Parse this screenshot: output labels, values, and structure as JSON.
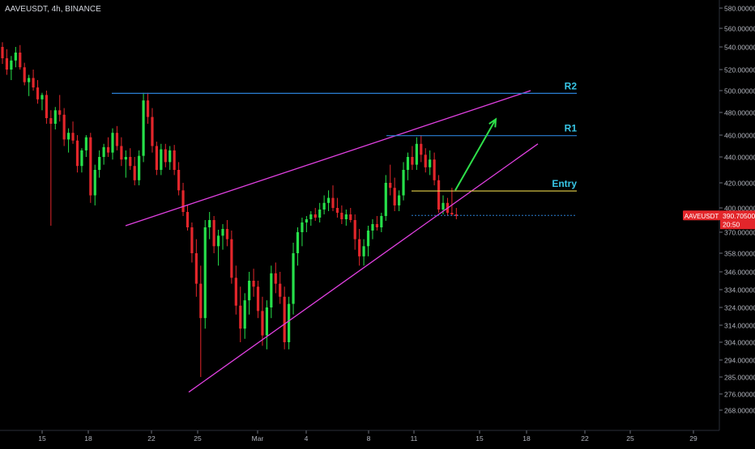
{
  "header": {
    "symbol_line": "AAVEUSDT, 4h, BINANCE"
  },
  "colors": {
    "background": "#000000",
    "up": "#26e04a",
    "down": "#e3262b",
    "wedge": "#e040e0",
    "resistance": "#2a7fd4",
    "entry": "#e8d44a",
    "arrow": "#2ee04a",
    "label_text": "#38c6e6",
    "price_tag": "#e3262b",
    "axis_text": "#b2b5be"
  },
  "chart_data": {
    "type": "candlestick",
    "symbol": "AAVEUSDT",
    "interval": "4h",
    "exchange": "BINANCE",
    "x_ticks": [
      "15",
      "18",
      "22",
      "25",
      "Mar",
      "4",
      "8",
      "11",
      "15",
      "18",
      "22",
      "25",
      "29"
    ],
    "y_ticks": [
      "580.00000",
      "560.00000",
      "540.00000",
      "520.00000",
      "500.00000",
      "480.00000",
      "460.00000",
      "440.00000",
      "420.00000",
      "400.00000",
      "370.00000",
      "358.00000",
      "346.00000",
      "334.00000",
      "324.00000",
      "314.00000",
      "304.00000",
      "294.00000",
      "285.00000",
      "276.00000",
      "268.00000"
    ],
    "y_range": [
      268,
      580
    ],
    "last_price": "390.70500",
    "countdown": "20:50",
    "price_label": "AAVEUSDT",
    "trend_levels": [
      {
        "label": "R2",
        "price": 497.5
      },
      {
        "label": "R1",
        "price": 459.5
      },
      {
        "label": "Entry",
        "price": 413.5
      }
    ],
    "dotted_level": 390.7,
    "wedge_upper": {
      "from": [
        "Feb 20",
        378
      ],
      "to": [
        "Mar 18",
        500
      ]
    },
    "wedge_lower": {
      "from": [
        "Feb 24",
        277
      ],
      "to": [
        "Mar 18",
        452
      ]
    },
    "projection_arrow": {
      "from": [
        "Mar 13",
        414
      ],
      "to": [
        "Mar 15",
        474
      ]
    },
    "ohlc": [
      [
        540,
        545,
        525,
        530
      ],
      [
        530,
        538,
        515,
        520
      ],
      [
        520,
        532,
        510,
        528
      ],
      [
        528,
        540,
        522,
        535
      ],
      [
        535,
        542,
        520,
        522
      ],
      [
        522,
        526,
        505,
        508
      ],
      [
        508,
        515,
        495,
        512
      ],
      [
        512,
        520,
        500,
        503
      ],
      [
        503,
        510,
        488,
        492
      ],
      [
        492,
        498,
        482,
        496
      ],
      [
        496,
        500,
        470,
        475
      ],
      [
        475,
        482,
        378,
        470
      ],
      [
        470,
        485,
        465,
        482
      ],
      [
        482,
        496,
        472,
        478
      ],
      [
        478,
        484,
        450,
        456
      ],
      [
        456,
        466,
        444,
        462
      ],
      [
        462,
        472,
        452,
        455
      ],
      [
        455,
        460,
        428,
        433
      ],
      [
        433,
        448,
        428,
        446
      ],
      [
        446,
        460,
        440,
        458
      ],
      [
        458,
        462,
        404,
        410
      ],
      [
        410,
        434,
        402,
        430
      ],
      [
        430,
        446,
        424,
        440
      ],
      [
        440,
        452,
        434,
        449
      ],
      [
        449,
        458,
        440,
        444
      ],
      [
        444,
        466,
        438,
        462
      ],
      [
        462,
        468,
        446,
        450
      ],
      [
        450,
        458,
        433,
        438
      ],
      [
        438,
        446,
        424,
        440
      ],
      [
        440,
        448,
        430,
        433
      ],
      [
        433,
        440,
        418,
        422
      ],
      [
        422,
        446,
        418,
        441
      ],
      [
        441,
        498,
        436,
        491
      ],
      [
        491,
        498,
        470,
        476
      ],
      [
        476,
        484,
        444,
        450
      ],
      [
        450,
        454,
        426,
        430
      ],
      [
        430,
        452,
        426,
        447
      ],
      [
        447,
        452,
        432,
        436
      ],
      [
        436,
        450,
        430,
        446
      ],
      [
        446,
        451,
        426,
        430
      ],
      [
        430,
        436,
        410,
        414
      ],
      [
        414,
        420,
        390,
        395
      ],
      [
        395,
        402,
        372,
        376
      ],
      [
        376,
        382,
        352,
        358
      ],
      [
        358,
        366,
        330,
        338
      ],
      [
        338,
        350,
        285,
        318
      ],
      [
        318,
        385,
        312,
        376
      ],
      [
        376,
        395,
        366,
        385
      ],
      [
        385,
        390,
        358,
        362
      ],
      [
        362,
        373,
        350,
        368
      ],
      [
        368,
        380,
        360,
        374
      ],
      [
        374,
        385,
        362,
        366
      ],
      [
        366,
        372,
        338,
        342
      ],
      [
        342,
        350,
        320,
        325
      ],
      [
        325,
        336,
        304,
        312
      ],
      [
        312,
        332,
        306,
        328
      ],
      [
        328,
        346,
        320,
        340
      ],
      [
        340,
        348,
        330,
        336
      ],
      [
        336,
        340,
        318,
        322
      ],
      [
        322,
        330,
        302,
        308
      ],
      [
        308,
        328,
        300,
        324
      ],
      [
        324,
        350,
        318,
        345
      ],
      [
        345,
        352,
        332,
        338
      ],
      [
        338,
        346,
        326,
        330
      ],
      [
        330,
        336,
        300,
        304
      ],
      [
        304,
        330,
        300,
        326
      ],
      [
        326,
        364,
        320,
        358
      ],
      [
        358,
        376,
        350,
        370
      ],
      [
        370,
        388,
        362,
        382
      ],
      [
        382,
        390,
        370,
        386
      ],
      [
        386,
        396,
        378,
        392
      ],
      [
        392,
        400,
        384,
        388
      ],
      [
        388,
        404,
        382,
        398
      ],
      [
        398,
        410,
        392,
        404
      ],
      [
        404,
        414,
        396,
        408
      ],
      [
        408,
        418,
        396,
        400
      ],
      [
        400,
        408,
        388,
        394
      ],
      [
        394,
        402,
        380,
        386
      ],
      [
        386,
        398,
        378,
        392
      ],
      [
        392,
        400,
        382,
        385
      ],
      [
        385,
        392,
        360,
        366
      ],
      [
        366,
        374,
        350,
        356
      ],
      [
        356,
        366,
        350,
        362
      ],
      [
        362,
        378,
        356,
        372
      ],
      [
        372,
        386,
        366,
        380
      ],
      [
        380,
        390,
        372,
        376
      ],
      [
        376,
        394,
        370,
        390
      ],
      [
        390,
        426,
        384,
        420
      ],
      [
        420,
        434,
        410,
        416
      ],
      [
        416,
        424,
        396,
        402
      ],
      [
        402,
        414,
        396,
        410
      ],
      [
        410,
        436,
        406,
        430
      ],
      [
        430,
        444,
        422,
        440
      ],
      [
        440,
        450,
        430,
        434
      ],
      [
        434,
        458,
        430,
        452
      ],
      [
        452,
        460,
        436,
        442
      ],
      [
        442,
        448,
        428,
        432
      ],
      [
        432,
        446,
        426,
        438
      ],
      [
        438,
        444,
        418,
        422
      ],
      [
        422,
        426,
        394,
        398
      ],
      [
        398,
        410,
        392,
        404
      ],
      [
        404,
        408,
        390,
        394
      ],
      [
        394,
        416,
        390,
        392
      ],
      [
        392,
        400,
        386,
        390
      ]
    ]
  }
}
